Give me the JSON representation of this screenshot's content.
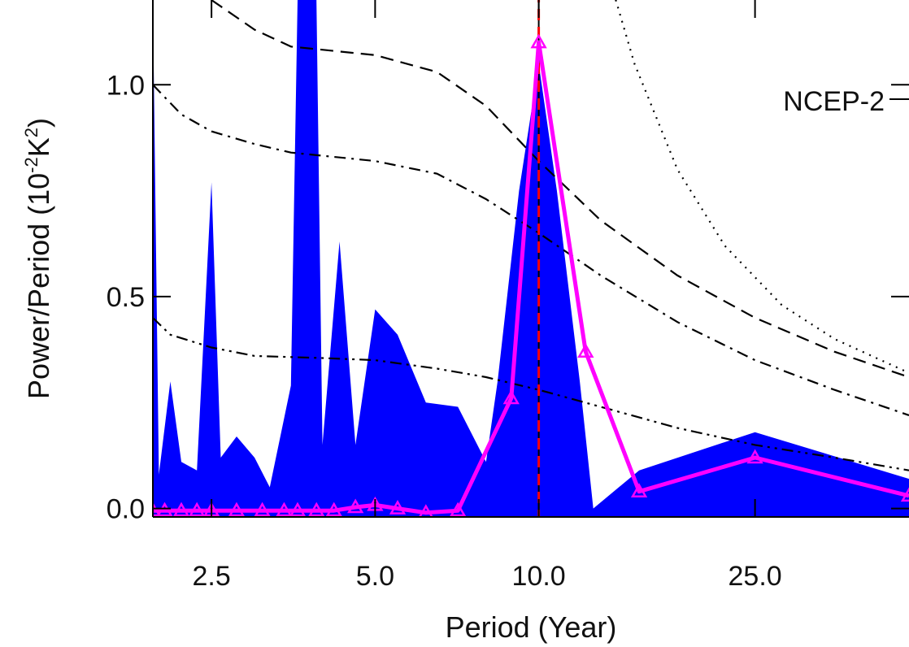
{
  "chart_data": {
    "type": "area",
    "title": "",
    "xlabel": "Period (Year)",
    "ylabel_main": "Power/Period (10",
    "ylabel_sup1": "-2",
    "ylabel_mid": "K",
    "ylabel_sup2": "2",
    "ylabel_end": ")",
    "x_scale": "log",
    "xlim": [
      1.95,
      48
    ],
    "ylim": [
      -0.02,
      1.2
    ],
    "x_ticks": [
      2.5,
      5.0,
      10.0,
      25.0
    ],
    "x_tick_labels": [
      "2.5",
      "5.0",
      "10.0",
      "25.0"
    ],
    "y_ticks": [
      0.0,
      0.5,
      1.0
    ],
    "y_tick_labels": [
      "0.0",
      "0.5",
      "1.0"
    ],
    "annotation": "NCEP-2",
    "grid": false,
    "marked_period": 10.0,
    "series": [
      {
        "kind": "filled_area",
        "color": "#0000ff",
        "points": [
          [
            1.95,
            1.2
          ],
          [
            2.0,
            0.08
          ],
          [
            2.1,
            0.3
          ],
          [
            2.2,
            0.11
          ],
          [
            2.35,
            0.09
          ],
          [
            2.5,
            0.77
          ],
          [
            2.6,
            0.12
          ],
          [
            2.78,
            0.17
          ],
          [
            3.0,
            0.12
          ],
          [
            3.2,
            0.05
          ],
          [
            3.5,
            0.29
          ],
          [
            3.6,
            1.2
          ],
          [
            3.9,
            1.2
          ],
          [
            4.0,
            0.15
          ],
          [
            4.3,
            0.63
          ],
          [
            4.6,
            0.15
          ],
          [
            5.0,
            0.47
          ],
          [
            5.5,
            0.41
          ],
          [
            6.2,
            0.25
          ],
          [
            7.1,
            0.24
          ],
          [
            8.0,
            0.11
          ],
          [
            8.4,
            0.3
          ],
          [
            9.2,
            0.75
          ],
          [
            10.0,
            1.05
          ],
          [
            10.8,
            0.75
          ],
          [
            11.9,
            0.3
          ],
          [
            12.6,
            0.0
          ],
          [
            15.3,
            0.09
          ],
          [
            25.0,
            0.18
          ],
          [
            48,
            0.07
          ]
        ]
      },
      {
        "kind": "line_with_markers",
        "color": "#ff00ff",
        "marker": "triangle",
        "points": [
          [
            1.95,
            -0.005
          ],
          [
            2.05,
            -0.005
          ],
          [
            2.2,
            -0.005
          ],
          [
            2.35,
            -0.005
          ],
          [
            2.5,
            -0.005
          ],
          [
            2.78,
            -0.005
          ],
          [
            3.1,
            -0.005
          ],
          [
            3.4,
            -0.005
          ],
          [
            3.6,
            -0.005
          ],
          [
            3.9,
            -0.005
          ],
          [
            4.2,
            -0.005
          ],
          [
            4.6,
            0.003
          ],
          [
            5.0,
            0.008
          ],
          [
            5.5,
            0.0
          ],
          [
            6.2,
            -0.01
          ],
          [
            7.1,
            -0.005
          ],
          [
            8.9,
            0.26
          ],
          [
            10.0,
            1.1
          ],
          [
            12.2,
            0.37
          ],
          [
            15.3,
            0.04
          ],
          [
            25.0,
            0.12
          ],
          [
            48,
            0.03
          ]
        ]
      },
      {
        "kind": "reference_curve",
        "style": "dotted",
        "color": "#000000",
        "points": [
          [
            13.5,
            1.25
          ],
          [
            15,
            1.05
          ],
          [
            18,
            0.8
          ],
          [
            22,
            0.62
          ],
          [
            28,
            0.48
          ],
          [
            35,
            0.4
          ],
          [
            48,
            0.32
          ]
        ]
      },
      {
        "kind": "reference_curve",
        "style": "dashed",
        "color": "#000000",
        "points": [
          [
            2.5,
            1.2
          ],
          [
            3.0,
            1.13
          ],
          [
            3.5,
            1.09
          ],
          [
            5.0,
            1.07
          ],
          [
            6.5,
            1.03
          ],
          [
            8.0,
            0.95
          ],
          [
            10.0,
            0.82
          ],
          [
            13.0,
            0.68
          ],
          [
            18.0,
            0.55
          ],
          [
            25.0,
            0.45
          ],
          [
            35.0,
            0.37
          ],
          [
            48,
            0.31
          ]
        ]
      },
      {
        "kind": "reference_curve",
        "style": "dash-dot",
        "color": "#000000",
        "points": [
          [
            1.95,
            1.0
          ],
          [
            2.2,
            0.93
          ],
          [
            2.5,
            0.89
          ],
          [
            3.0,
            0.86
          ],
          [
            3.5,
            0.84
          ],
          [
            5.0,
            0.82
          ],
          [
            6.5,
            0.79
          ],
          [
            8.0,
            0.73
          ],
          [
            10.0,
            0.65
          ],
          [
            13.0,
            0.55
          ],
          [
            18.0,
            0.44
          ],
          [
            25.0,
            0.35
          ],
          [
            35.0,
            0.28
          ],
          [
            48,
            0.22
          ]
        ]
      },
      {
        "kind": "reference_curve",
        "style": "dash-dot-dot",
        "color": "#000000",
        "points": [
          [
            1.95,
            0.45
          ],
          [
            2.1,
            0.41
          ],
          [
            2.5,
            0.38
          ],
          [
            3.0,
            0.36
          ],
          [
            4.0,
            0.355
          ],
          [
            5.0,
            0.35
          ],
          [
            6.5,
            0.33
          ],
          [
            8.0,
            0.31
          ],
          [
            10.0,
            0.28
          ],
          [
            13.0,
            0.24
          ],
          [
            18.0,
            0.19
          ],
          [
            25.0,
            0.15
          ],
          [
            35.0,
            0.12
          ],
          [
            48,
            0.09
          ]
        ]
      }
    ]
  }
}
